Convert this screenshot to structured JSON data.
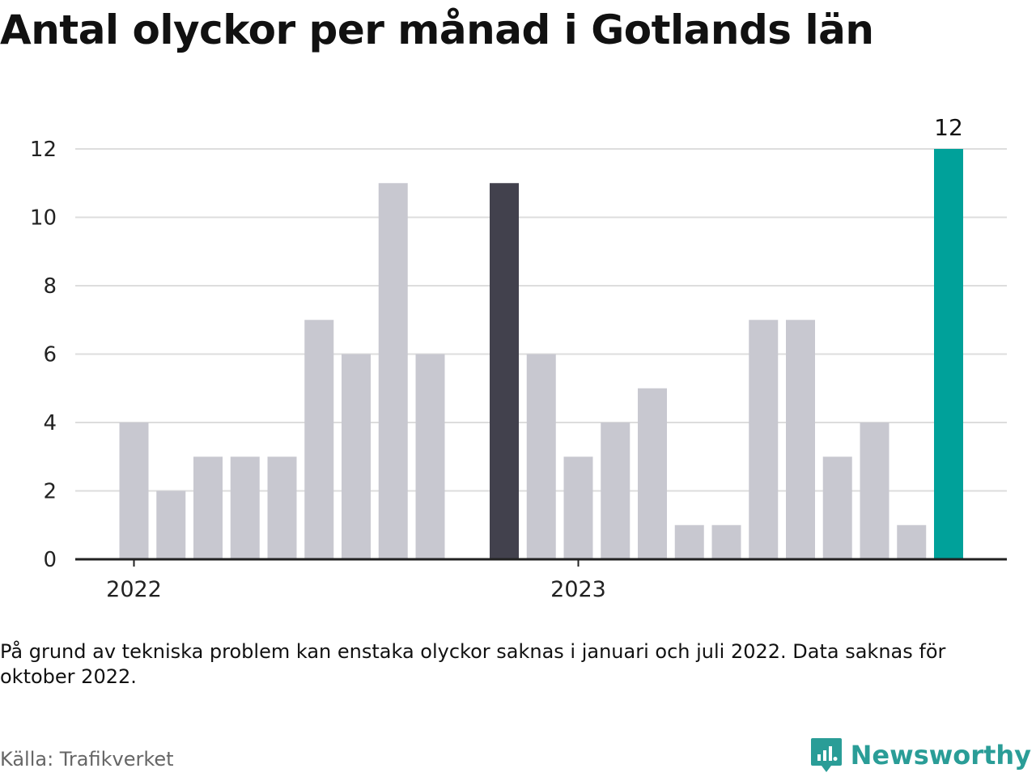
{
  "title": "Antal olyckor per månad i Gotlands län",
  "note": "På grund av tekniska problem kan enstaka olyckor saknas i januari och juli 2022. Data saknas för oktober 2022.",
  "source": "Källa: Trafikverket",
  "brand": "Newsworthy",
  "colors": {
    "default_bar": "#c8c8d0",
    "highlight_dark": "#42414d",
    "highlight_latest": "#00a19a",
    "grid": "#dddddd",
    "axis": "#222222",
    "brand": "#2a9d97"
  },
  "chart_data": {
    "type": "bar",
    "title": "Antal olyckor per månad i Gotlands län",
    "xlabel": "",
    "ylabel": "",
    "ylim": [
      0,
      12
    ],
    "yticks": [
      0,
      2,
      4,
      6,
      8,
      10,
      12
    ],
    "year_ticks": [
      {
        "label": "2022",
        "month": "2022-01"
      },
      {
        "label": "2023",
        "month": "2023-01"
      }
    ],
    "months": [
      "2022-01",
      "2022-02",
      "2022-03",
      "2022-04",
      "2022-05",
      "2022-06",
      "2022-07",
      "2022-08",
      "2022-09",
      "2022-10",
      "2022-11",
      "2022-12",
      "2023-01",
      "2023-02",
      "2023-03",
      "2023-04",
      "2023-05",
      "2023-06",
      "2023-07",
      "2023-08",
      "2023-09",
      "2023-10",
      "2023-11",
      "2023-12"
    ],
    "values": [
      4,
      2,
      3,
      3,
      3,
      7,
      6,
      11,
      6,
      null,
      11,
      6,
      3,
      4,
      5,
      1,
      1,
      7,
      7,
      3,
      4,
      1,
      12,
      null
    ],
    "highlight": {
      "dark_month": "2022-11",
      "latest_month": "2023-11"
    },
    "value_labels": [
      {
        "month": "2023-11",
        "label": "12"
      }
    ],
    "grid": true,
    "legend": "none"
  }
}
